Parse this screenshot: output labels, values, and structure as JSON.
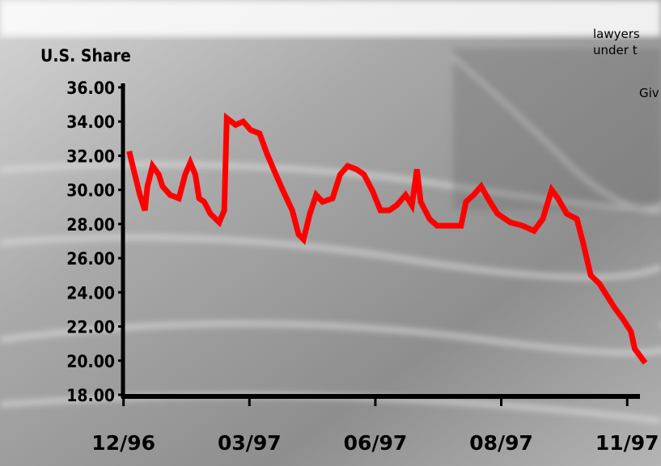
{
  "chart_data": {
    "type": "line",
    "y_label": "U.S. Share",
    "annotations": [
      "lawyers",
      "under t",
      "Giv"
    ],
    "xlim": [
      -0.03,
      4.14
    ],
    "xticks": [
      {
        "value": 0,
        "label": "12/96"
      },
      {
        "value": 1,
        "label": "03/97"
      },
      {
        "value": 2,
        "label": "06/97"
      },
      {
        "value": 3,
        "label": "08/97"
      },
      {
        "value": 4,
        "label": "11/97"
      }
    ],
    "ylim": [
      18,
      36
    ],
    "yticks": [
      {
        "value": 18,
        "label": "18.00"
      },
      {
        "value": 20,
        "label": "20.00"
      },
      {
        "value": 22,
        "label": "22.00"
      },
      {
        "value": 24,
        "label": "24.00"
      },
      {
        "value": 26,
        "label": "26.00"
      },
      {
        "value": 28,
        "label": "28.00"
      },
      {
        "value": 30,
        "label": "30.00"
      },
      {
        "value": 32,
        "label": "32.00"
      },
      {
        "value": 34,
        "label": "34.00"
      },
      {
        "value": 36,
        "label": "36.00"
      }
    ],
    "series": [
      {
        "color": "#ff0000",
        "x": [
          0.05,
          0.08,
          0.13,
          0.17,
          0.19,
          0.23,
          0.28,
          0.31,
          0.37,
          0.44,
          0.49,
          0.53,
          0.57,
          0.6,
          0.64,
          0.69,
          0.76,
          0.8,
          0.82,
          0.89,
          0.95,
          1.01,
          1.08,
          1.14,
          1.21,
          1.27,
          1.34,
          1.39,
          1.43,
          1.48,
          1.53,
          1.58,
          1.66,
          1.72,
          1.78,
          1.85,
          1.91,
          1.98,
          2.04,
          2.11,
          2.17,
          2.24,
          2.29,
          2.33,
          2.36,
          2.43,
          2.49,
          2.59,
          2.68,
          2.72,
          2.78,
          2.84,
          2.91,
          2.97,
          3.07,
          3.17,
          3.26,
          3.33,
          3.4,
          3.45,
          3.52,
          3.6,
          3.65,
          3.71,
          3.78,
          3.84,
          3.9,
          3.97,
          4.03,
          4.06,
          4.13
        ],
        "values": [
          32.1,
          31.2,
          29.7,
          28.8,
          30.2,
          31.4,
          30.9,
          30.2,
          29.7,
          29.5,
          30.9,
          31.6,
          30.9,
          29.5,
          29.3,
          28.6,
          28.1,
          28.8,
          34.2,
          33.8,
          34.0,
          33.5,
          33.3,
          32.1,
          30.9,
          29.9,
          28.8,
          27.4,
          27.1,
          28.6,
          29.7,
          29.3,
          29.5,
          30.9,
          31.4,
          31.2,
          30.9,
          29.9,
          28.8,
          28.8,
          29.1,
          29.7,
          29.1,
          31.2,
          29.3,
          28.3,
          27.9,
          27.9,
          27.9,
          29.3,
          29.7,
          30.2,
          29.3,
          28.6,
          28.1,
          27.9,
          27.6,
          28.3,
          30.0,
          29.5,
          28.6,
          28.3,
          26.9,
          25.0,
          24.5,
          23.8,
          23.1,
          22.4,
          21.7,
          20.7,
          20.0
        ]
      }
    ]
  }
}
